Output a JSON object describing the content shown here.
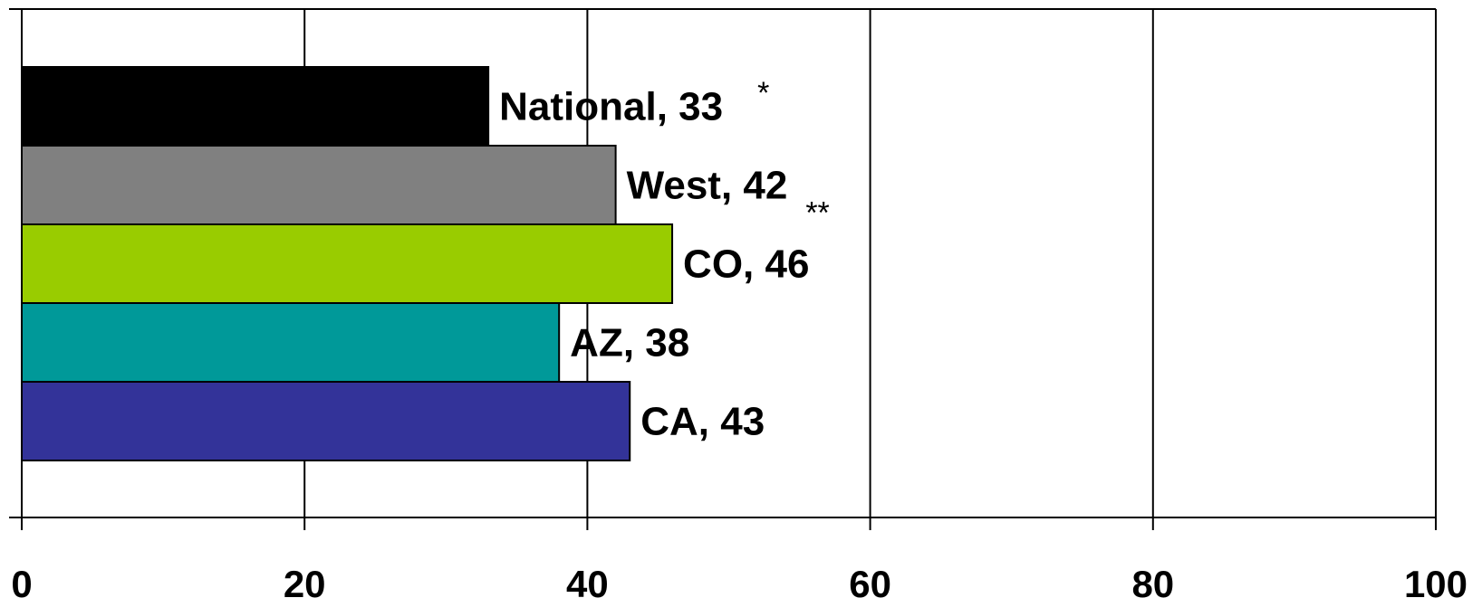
{
  "chart_data": {
    "type": "bar",
    "orientation": "horizontal",
    "categories": [
      "National",
      "West",
      "CO",
      "AZ",
      "CA"
    ],
    "values": [
      33,
      42,
      46,
      38,
      43
    ],
    "data_labels": [
      "National, 33",
      "West, 42",
      "CO, 46",
      "AZ, 38",
      "CA, 43"
    ],
    "bar_colors": [
      "#000000",
      "#808080",
      "#99CC00",
      "#009999",
      "#333399"
    ],
    "annotations": [
      {
        "text": "*",
        "category": "National"
      },
      {
        "text": "**",
        "category": "West"
      }
    ],
    "xlim": [
      0,
      100
    ],
    "x_ticks": [
      0,
      20,
      40,
      60,
      80,
      100
    ],
    "x_tick_labels": [
      "0",
      "20",
      "40",
      "60",
      "80",
      "100"
    ],
    "grid": "vertical",
    "legend": "none",
    "title": "",
    "xlabel": "",
    "ylabel": ""
  }
}
